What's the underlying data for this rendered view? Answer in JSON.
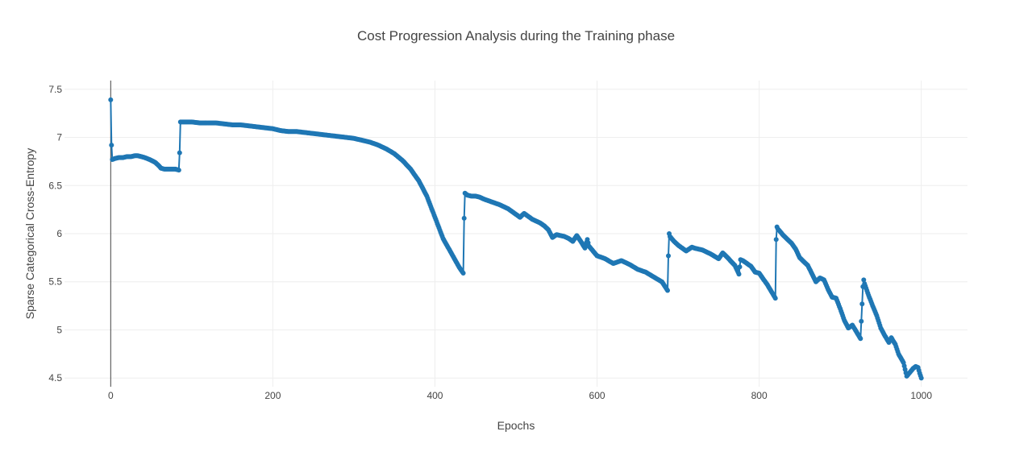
{
  "chart_data": {
    "type": "line",
    "title": "Cost Progression Analysis during the Training phase",
    "xlabel": "Epochs",
    "ylabel": "Sparse Categorical Cross-Entropy",
    "xlim": [
      -57,
      1057
    ],
    "ylim": [
      4.41,
      7.59
    ],
    "x_ticks": [
      0,
      200,
      400,
      600,
      800,
      1000
    ],
    "y_ticks": [
      4.5,
      5,
      5.5,
      6,
      6.5,
      7,
      7.5
    ],
    "x_tick_labels": [
      "0",
      "200",
      "400",
      "600",
      "800",
      "1000"
    ],
    "y_tick_labels": [
      "4.5",
      "5",
      "5.5",
      "6",
      "6.5",
      "7",
      "7.5"
    ],
    "grid": true,
    "mode": "lines+markers",
    "series": [
      {
        "color": "#1f77b4",
        "x": [
          0,
          1,
          2,
          5,
          10,
          15,
          20,
          25,
          30,
          33,
          38,
          42,
          48,
          55,
          60,
          62,
          66,
          70,
          75,
          80,
          84,
          85,
          86,
          87,
          90,
          95,
          100,
          110,
          120,
          130,
          140,
          150,
          160,
          170,
          180,
          190,
          200,
          210,
          220,
          230,
          240,
          250,
          260,
          270,
          280,
          290,
          300,
          310,
          320,
          330,
          340,
          350,
          360,
          370,
          380,
          390,
          400,
          410,
          420,
          430,
          435,
          436,
          437,
          440,
          445,
          450,
          455,
          460,
          470,
          480,
          490,
          495,
          500,
          505,
          510,
          515,
          520,
          530,
          535,
          540,
          545,
          550,
          555,
          560,
          565,
          570,
          575,
          580,
          585,
          588,
          590,
          595,
          600,
          610,
          620,
          630,
          640,
          650,
          660,
          670,
          680,
          687,
          688,
          689,
          690,
          695,
          700,
          710,
          717,
          720,
          730,
          740,
          750,
          755,
          760,
          770,
          775,
          777,
          780,
          785,
          790,
          795,
          800,
          810,
          820,
          821,
          822,
          823,
          830,
          840,
          845,
          850,
          860,
          870,
          875,
          880,
          885,
          890,
          895,
          900,
          905,
          910,
          915,
          920,
          925,
          928,
          929,
          930,
          935,
          940,
          945,
          950,
          955,
          960,
          963,
          965,
          968,
          972,
          978,
          982,
          985,
          990,
          993,
          996,
          998,
          1000
        ],
        "y": [
          7.39,
          6.92,
          6.77,
          6.78,
          6.79,
          6.79,
          6.8,
          6.8,
          6.81,
          6.81,
          6.8,
          6.79,
          6.77,
          6.74,
          6.7,
          6.68,
          6.67,
          6.67,
          6.67,
          6.67,
          6.66,
          6.84,
          7.16,
          7.16,
          7.16,
          7.16,
          7.16,
          7.15,
          7.15,
          7.15,
          7.14,
          7.13,
          7.13,
          7.12,
          7.11,
          7.1,
          7.09,
          7.07,
          7.06,
          7.06,
          7.05,
          7.04,
          7.03,
          7.02,
          7.01,
          7.0,
          6.99,
          6.97,
          6.95,
          6.92,
          6.88,
          6.83,
          6.76,
          6.67,
          6.55,
          6.39,
          6.17,
          5.95,
          5.8,
          5.65,
          5.59,
          6.16,
          6.42,
          6.4,
          6.39,
          6.39,
          6.38,
          6.36,
          6.33,
          6.3,
          6.26,
          6.23,
          6.2,
          6.17,
          6.21,
          6.18,
          6.15,
          6.11,
          6.08,
          6.04,
          5.96,
          5.99,
          5.98,
          5.97,
          5.95,
          5.92,
          5.98,
          5.92,
          5.85,
          5.94,
          5.87,
          5.82,
          5.77,
          5.74,
          5.69,
          5.72,
          5.68,
          5.63,
          5.6,
          5.55,
          5.5,
          5.41,
          5.77,
          6.0,
          5.97,
          5.92,
          5.88,
          5.82,
          5.86,
          5.85,
          5.83,
          5.79,
          5.74,
          5.8,
          5.76,
          5.67,
          5.58,
          5.73,
          5.72,
          5.69,
          5.66,
          5.6,
          5.59,
          5.47,
          5.33,
          5.94,
          6.07,
          6.05,
          5.98,
          5.9,
          5.84,
          5.75,
          5.67,
          5.5,
          5.54,
          5.52,
          5.42,
          5.34,
          5.33,
          5.22,
          5.1,
          5.02,
          5.05,
          4.98,
          4.91,
          5.45,
          5.52,
          5.48,
          5.36,
          5.25,
          5.15,
          5.02,
          4.94,
          4.87,
          4.92,
          4.89,
          4.85,
          4.75,
          4.66,
          4.52,
          4.55,
          4.6,
          4.62,
          4.61,
          4.55,
          4.5
        ]
      }
    ]
  }
}
